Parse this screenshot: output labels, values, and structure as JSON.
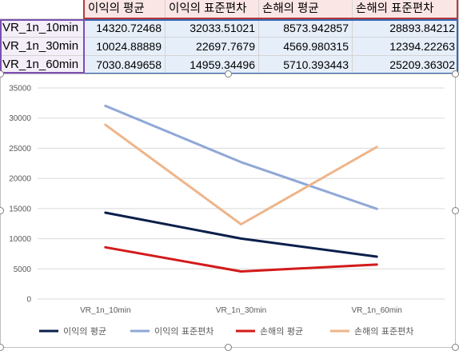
{
  "table": {
    "headers": [
      "이익의 평균",
      "이익의 표준편차",
      "손해의 평균",
      "손해의 표준편차"
    ],
    "rows": [
      {
        "label": "VR_1n_10min",
        "values": [
          "14320.72468",
          "32033.51021",
          "8573.942857",
          "28893.84212"
        ]
      },
      {
        "label": "VR_1n_30min",
        "values": [
          "10024.88889",
          "22697.7679",
          "4569.980315",
          "12394.22263"
        ]
      },
      {
        "label": "VR_1n_60min",
        "values": [
          "7030.849658",
          "14959.34496",
          "5710.393443",
          "25209.36302"
        ]
      }
    ]
  },
  "chart_data": {
    "type": "line",
    "categories": [
      "VR_1n_10min",
      "VR_1n_30min",
      "VR_1n_60min"
    ],
    "ylim": [
      0,
      35000
    ],
    "yticks": [
      "35000",
      "30000",
      "25000",
      "20000",
      "15000",
      "10000",
      "5000",
      "0"
    ],
    "yticks_values": [
      35000,
      30000,
      25000,
      20000,
      15000,
      10000,
      5000,
      0
    ],
    "grid": true,
    "legend_position": "bottom",
    "series": [
      {
        "name": "이익의 평균",
        "values": [
          14320.72468,
          10024.88889,
          7030.849658
        ],
        "color": "#0b1f4b"
      },
      {
        "name": "이익의 표준편차",
        "values": [
          32033.51021,
          22697.7679,
          14959.34496
        ],
        "color": "#8fa8d6"
      },
      {
        "name": "손해의 평균",
        "values": [
          8573.942857,
          4569.980315,
          5710.393443
        ],
        "color": "#d31a1a"
      },
      {
        "name": "손해의 표준편차",
        "values": [
          28893.84212,
          12394.22263,
          25209.36302
        ],
        "color": "#eeb58a"
      }
    ]
  }
}
